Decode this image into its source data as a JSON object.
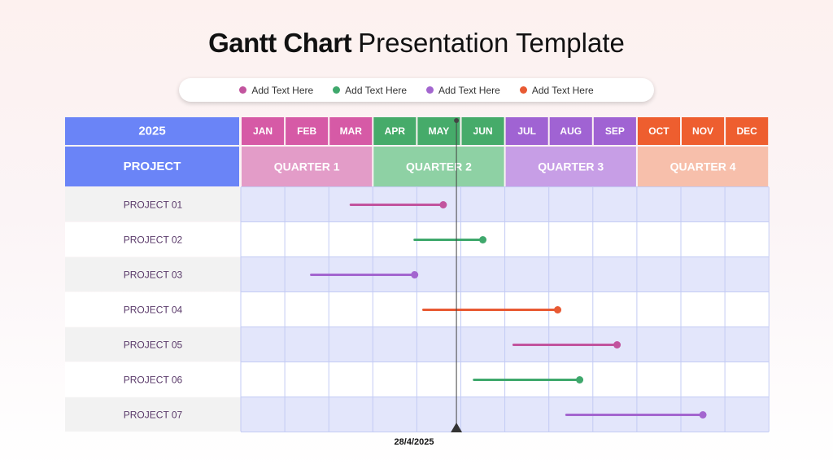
{
  "title": {
    "bold": "Gantt Chart",
    "light": "Presentation Template"
  },
  "legend": [
    {
      "label": "Add Text Here",
      "color": "#c2549e"
    },
    {
      "label": "Add Text Here",
      "color": "#3fa86c"
    },
    {
      "label": "Add Text Here",
      "color": "#a366cf"
    },
    {
      "label": "Add Text Here",
      "color": "#e85a33"
    }
  ],
  "chart_data": {
    "type": "gantt",
    "year": "2025",
    "row_header": "PROJECT",
    "months": [
      "JAN",
      "FEB",
      "MAR",
      "APR",
      "MAY",
      "JUN",
      "JUL",
      "AUG",
      "SEP",
      "OCT",
      "NOV",
      "DEC"
    ],
    "quarters": [
      {
        "label": "QUARTER 1",
        "header_color": "#d65aa6",
        "quarter_color": "#e39cc8"
      },
      {
        "label": "QUARTER 2",
        "header_color": "#46ab6a",
        "quarter_color": "#8ed1a4"
      },
      {
        "label": "QUARTER 3",
        "header_color": "#a063d3",
        "quarter_color": "#c79ee6"
      },
      {
        "label": "QUARTER 4",
        "header_color": "#ee5e2f",
        "quarter_color": "#f7bfab"
      }
    ],
    "year_color": "#6a84f7",
    "today": {
      "label": "28/4/2025",
      "month": 4.9
    },
    "projects": [
      {
        "name": "PROJECT 01",
        "start": 2.5,
        "end": 4.6,
        "color": "#c2549e"
      },
      {
        "name": "PROJECT 02",
        "start": 3.95,
        "end": 5.5,
        "color": "#3fa86c"
      },
      {
        "name": "PROJECT 03",
        "start": 1.6,
        "end": 3.95,
        "color": "#a366cf"
      },
      {
        "name": "PROJECT 04",
        "start": 4.15,
        "end": 7.2,
        "color": "#e85a33"
      },
      {
        "name": "PROJECT 05",
        "start": 6.2,
        "end": 8.55,
        "color": "#c2549e"
      },
      {
        "name": "PROJECT 06",
        "start": 5.3,
        "end": 7.7,
        "color": "#3fa86c"
      },
      {
        "name": "PROJECT 07",
        "start": 7.4,
        "end": 10.5,
        "color": "#a366cf"
      }
    ]
  }
}
